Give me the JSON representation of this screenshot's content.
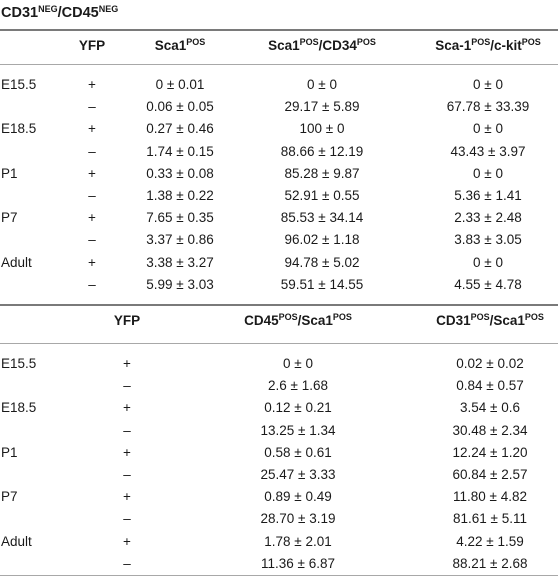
{
  "caption": {
    "main1": "CD31",
    "sup1": "NEG",
    "sep": "/CD45",
    "sup2": "NEG"
  },
  "table1": {
    "header": {
      "yfp": "YFP",
      "col1": {
        "base": "Sca1",
        "sup": "POS"
      },
      "col2": {
        "base1": "Sca1",
        "sup1": "POS",
        "base2": "/CD34",
        "sup2": "POS"
      },
      "col3": {
        "base1": "Sca-1",
        "sup1": "POS",
        "base2": "/c-kit",
        "sup2": "POS"
      }
    },
    "rows": [
      {
        "stage": "E15.5",
        "yfp": "+",
        "v1": "0 ± 0.01",
        "v2": "0 ± 0",
        "v3": "0 ± 0"
      },
      {
        "stage": "",
        "yfp": "–",
        "v1": "0.06 ± 0.05",
        "v2": "29.17 ± 5.89",
        "v3": "67.78 ± 33.39"
      },
      {
        "stage": "E18.5",
        "yfp": "+",
        "v1": "0.27 ± 0.46",
        "v2": "100 ± 0",
        "v3": "0 ± 0"
      },
      {
        "stage": "",
        "yfp": "–",
        "v1": "1.74 ± 0.15",
        "v2": "88.66 ± 12.19",
        "v3": "43.43 ± 3.97"
      },
      {
        "stage": "P1",
        "yfp": "+",
        "v1": "0.33 ± 0.08",
        "v2": "85.28 ± 9.87",
        "v3": "0 ± 0"
      },
      {
        "stage": "",
        "yfp": "–",
        "v1": "1.38 ± 0.22",
        "v2": "52.91 ± 0.55",
        "v3": "5.36 ± 1.41"
      },
      {
        "stage": "P7",
        "yfp": "+",
        "v1": "7.65 ± 0.35",
        "v2": "85.53 ± 34.14",
        "v3": "2.33 ± 2.48"
      },
      {
        "stage": "",
        "yfp": "–",
        "v1": "3.37 ± 0.86",
        "v2": "96.02 ± 1.18",
        "v3": "3.83 ± 3.05"
      },
      {
        "stage": "Adult",
        "yfp": "+",
        "v1": "3.38 ± 3.27",
        "v2": "94.78 ± 5.02",
        "v3": "0 ± 0"
      },
      {
        "stage": "",
        "yfp": "–",
        "v1": "5.99 ± 3.03",
        "v2": "59.51 ± 14.55",
        "v3": "4.55 ± 4.78"
      }
    ]
  },
  "table2": {
    "header": {
      "yfp": "YFP",
      "col1": {
        "base1": "CD45",
        "sup1": "POS",
        "base2": "/Sca1",
        "sup2": "POS"
      },
      "col2": {
        "base1": "CD31",
        "sup1": "POS",
        "base2": "/Sca1",
        "sup2": "POS"
      }
    },
    "rows": [
      {
        "stage": "E15.5",
        "yfp": "+",
        "v1": "0 ± 0",
        "v2": "0.02 ± 0.02"
      },
      {
        "stage": "",
        "yfp": "–",
        "v1": "2.6 ± 1.68",
        "v2": "0.84 ± 0.57"
      },
      {
        "stage": "E18.5",
        "yfp": "+",
        "v1": "0.12 ± 0.21",
        "v2": "3.54 ± 0.6"
      },
      {
        "stage": "",
        "yfp": "–",
        "v1": "13.25 ± 1.34",
        "v2": "30.48 ± 2.34"
      },
      {
        "stage": "P1",
        "yfp": "+",
        "v1": "0.58 ± 0.61",
        "v2": "12.24 ± 1.20"
      },
      {
        "stage": "",
        "yfp": "–",
        "v1": "25.47 ± 3.33",
        "v2": "60.84 ± 2.57"
      },
      {
        "stage": "P7",
        "yfp": "+",
        "v1": "0.89 ± 0.49",
        "v2": "11.80 ± 4.82"
      },
      {
        "stage": "",
        "yfp": "–",
        "v1": "28.70 ± 3.19",
        "v2": "81.61 ± 5.11"
      },
      {
        "stage": "Adult",
        "yfp": "+",
        "v1": "1.78 ± 2.01",
        "v2": "4.22 ± 1.59"
      },
      {
        "stage": "",
        "yfp": "–",
        "v1": "11.36 ± 6.87",
        "v2": "88.21 ± 2.68"
      }
    ]
  }
}
